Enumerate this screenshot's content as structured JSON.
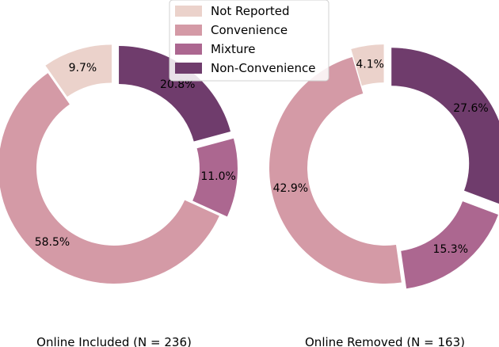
{
  "chart_data": {
    "type": "pie",
    "legend": {
      "placement": "top-center",
      "entries": [
        {
          "label": "Not Reported",
          "color": "#ebd2cb"
        },
        {
          "label": "Convenience",
          "color": "#d49aa6"
        },
        {
          "label": "Mixture",
          "color": "#ac6790"
        },
        {
          "label": "Non-Convenience",
          "color": "#6f3c6c"
        }
      ]
    },
    "charts": [
      {
        "title": "Online Included (N = 236)",
        "slices": [
          {
            "label": "Non-Convenience",
            "value": 20.8,
            "value_label": "20.8%",
            "color": "#6f3c6c",
            "exploded": true
          },
          {
            "label": "Mixture",
            "value": 11.0,
            "value_label": "11.0%",
            "color": "#ac6790",
            "exploded": true
          },
          {
            "label": "Convenience",
            "value": 58.5,
            "value_label": "58.5%",
            "color": "#d49aa6",
            "exploded": false
          },
          {
            "label": "Not Reported",
            "value": 9.7,
            "value_label": "9.7%",
            "color": "#ebd2cb",
            "exploded": true
          }
        ]
      },
      {
        "title": "Online Removed (N = 163)",
        "slices": [
          {
            "label": "Non-Convenience",
            "value": 27.6,
            "value_label": "27.6%",
            "color": "#6f3c6c",
            "exploded": true
          },
          {
            "label": "Mixture",
            "value": 15.3,
            "value_label": "15.3%",
            "color": "#ac6790",
            "exploded": true
          },
          {
            "label": "Convenience",
            "value": 42.9,
            "value_label": "42.9%",
            "color": "#d49aa6",
            "exploded": false
          },
          {
            "label": "Not Reported",
            "value": 4.1,
            "value_label": "4.1%",
            "color": "#ebd2cb",
            "exploded": true
          }
        ]
      }
    ]
  }
}
